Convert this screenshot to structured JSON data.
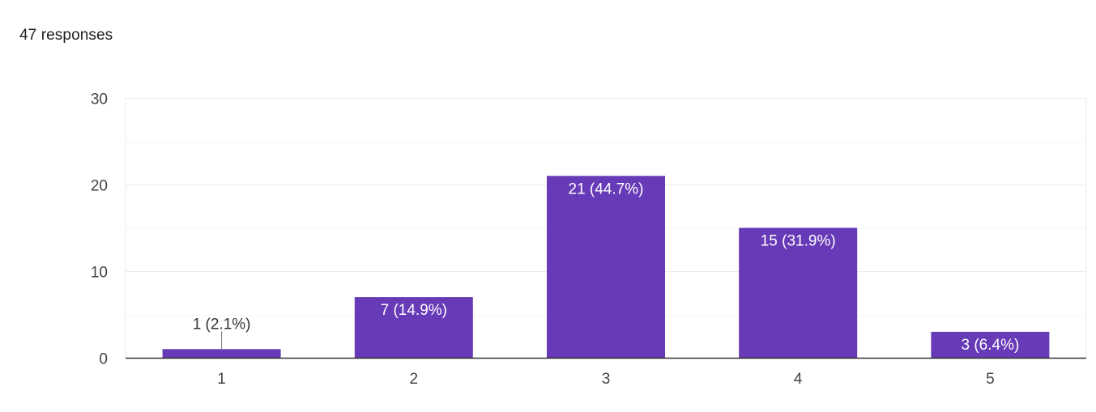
{
  "summary": {
    "responses_text": "47 responses"
  },
  "colors": {
    "bar": "#673ab7",
    "gridline": "#ebebeb",
    "minor_gridline": "#f5f5f5",
    "axis": "#333333",
    "inside_label": "#ffffff",
    "outside_label": "#333333"
  },
  "chart_data": {
    "type": "bar",
    "categories": [
      "1",
      "2",
      "3",
      "4",
      "5"
    ],
    "values": [
      1,
      7,
      21,
      15,
      3
    ],
    "data_labels": [
      "1 (2.1%)",
      "7 (14.9%)",
      "21 (44.7%)",
      "15 (31.9%)",
      "3 (6.4%)"
    ],
    "ylim": [
      0,
      30
    ],
    "yticks": [
      0,
      10,
      20,
      30
    ],
    "grid": true,
    "legend": "none",
    "title": "",
    "xlabel": "",
    "ylabel": ""
  }
}
